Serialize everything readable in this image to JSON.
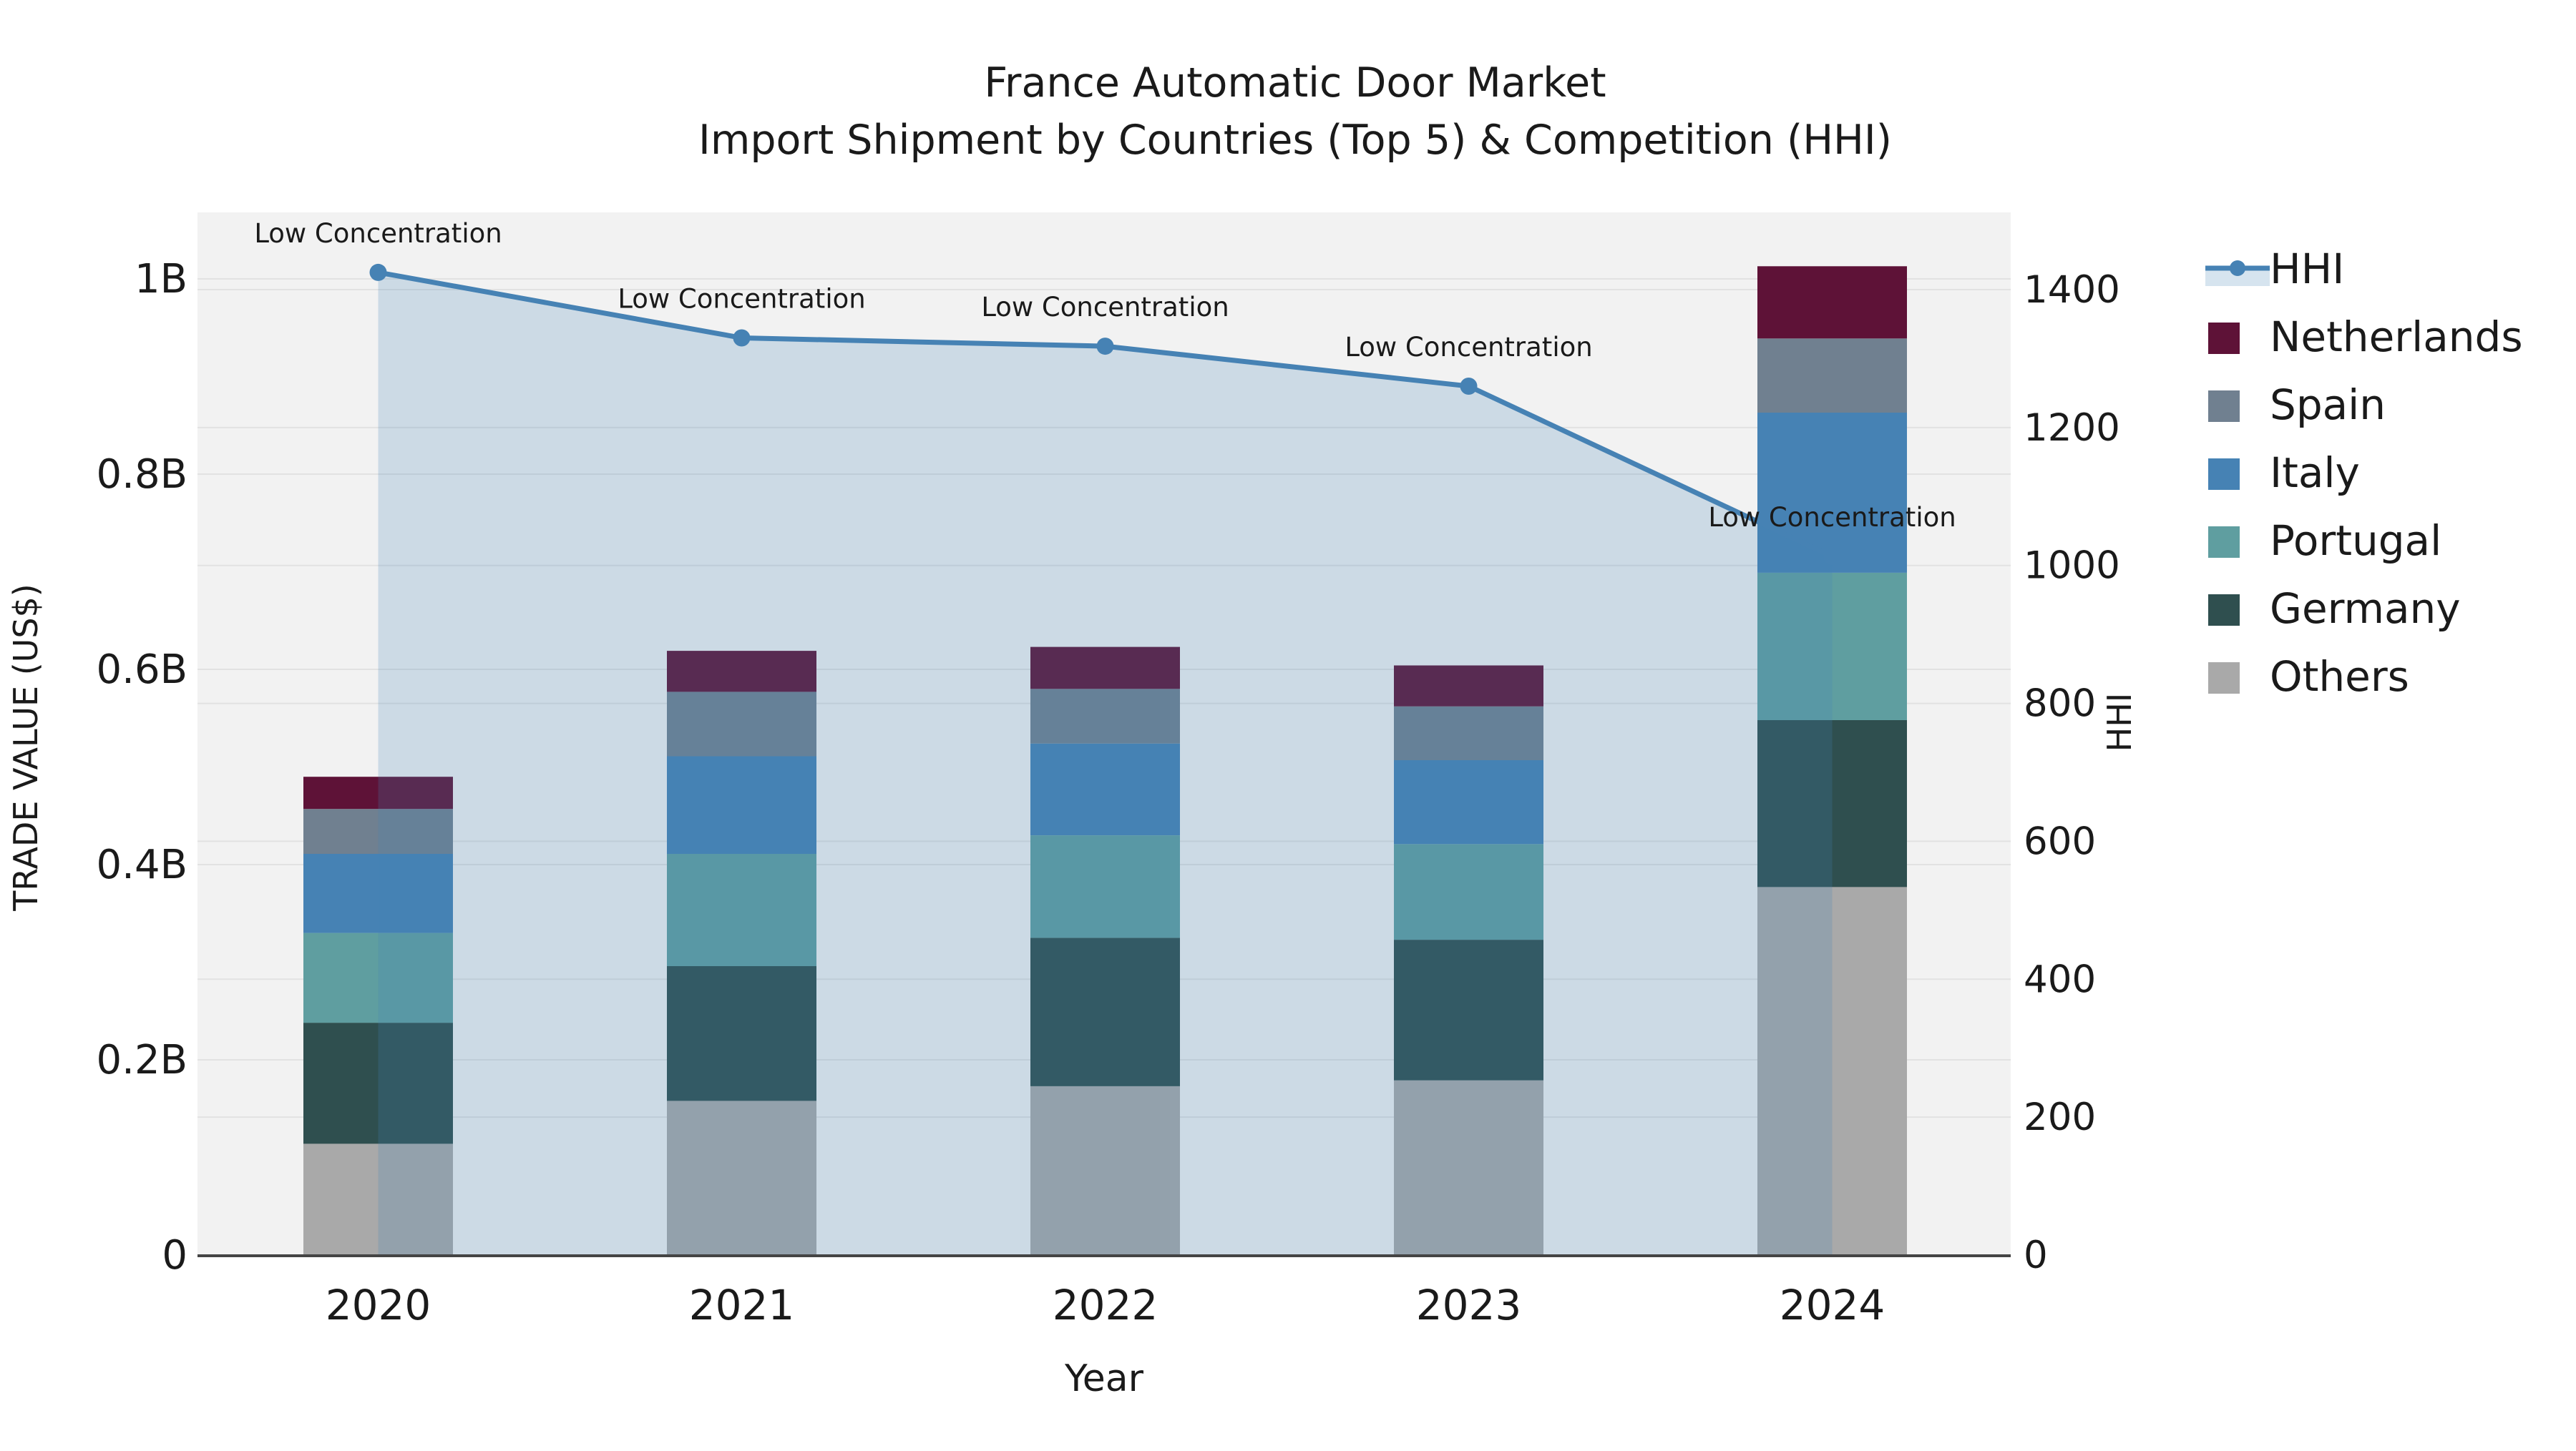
{
  "figure": {
    "title_line1": "France Automatic Door Market",
    "title_line2": "Import Shipment by Countries (Top 5) & Competition (HHI)",
    "colors": {
      "background": "#ffffff",
      "plot_background": "#f2f2f2",
      "gridline": "#e2e2e2",
      "axis_spine": "#444444",
      "text": "#1a1a1a"
    }
  },
  "chart_data": {
    "type": "bar",
    "subtype": "stacked-bars-with-line-area-overlay",
    "title": "France Automatic Door Market Import Shipment by Countries (Top 5) & Competition (HHI)",
    "xlabel": "Year",
    "ylabel_left": "TRADE VALUE (US$)",
    "ylabel_right": "HHI",
    "categories": [
      "2020",
      "2021",
      "2022",
      "2023",
      "2024"
    ],
    "unit_note": "trade values in billions US$",
    "series": [
      {
        "name": "Others",
        "color": "#a9a9a9",
        "values": [
          0.114,
          0.158,
          0.173,
          0.179,
          0.377
        ]
      },
      {
        "name": "Germany",
        "color": "#2f4f4f",
        "values": [
          0.124,
          0.138,
          0.152,
          0.144,
          0.171
        ]
      },
      {
        "name": "Portugal",
        "color": "#5f9ea0",
        "values": [
          0.092,
          0.115,
          0.105,
          0.098,
          0.151
        ]
      },
      {
        "name": "Italy",
        "color": "#4682b4",
        "values": [
          0.081,
          0.1,
          0.094,
          0.086,
          0.164
        ]
      },
      {
        "name": "Spain",
        "color": "#708090",
        "values": [
          0.046,
          0.066,
          0.056,
          0.055,
          0.076
        ]
      },
      {
        "name": "Netherlands",
        "color": "#5e1237",
        "values": [
          0.033,
          0.042,
          0.043,
          0.042,
          0.074
        ]
      }
    ],
    "bar_totals": [
      0.49,
      0.619,
      0.623,
      0.604,
      1.013
    ],
    "hhi_line": {
      "name": "HHI",
      "color": "#4682b4",
      "area_fill": "rgba(70,130,180,0.22)",
      "values": [
        1425,
        1330,
        1318,
        1260,
        1013
      ],
      "annotations": [
        "Low Concentration",
        "Low Concentration",
        "Low Concentration",
        "Low Concentration",
        "Low Concentration"
      ]
    },
    "left_axis": {
      "label": "TRADE VALUE (US$)",
      "ticks": [
        "0",
        "0.2B",
        "0.4B",
        "0.6B",
        "0.8B",
        "1B"
      ],
      "tick_values": [
        0,
        0.2,
        0.4,
        0.6,
        0.8,
        1.0
      ],
      "lim": [
        0,
        1.068
      ]
    },
    "right_axis": {
      "label": "HHI",
      "ticks": [
        "0",
        "200",
        "400",
        "600",
        "800",
        "1000",
        "1200",
        "1400"
      ],
      "tick_values": [
        0,
        200,
        400,
        600,
        800,
        1000,
        1200,
        1400
      ],
      "lim": [
        0,
        1512
      ]
    },
    "legend": {
      "position": "right",
      "entries": [
        "HHI",
        "Netherlands",
        "Spain",
        "Italy",
        "Portugal",
        "Germany",
        "Others"
      ]
    },
    "grid": true
  }
}
